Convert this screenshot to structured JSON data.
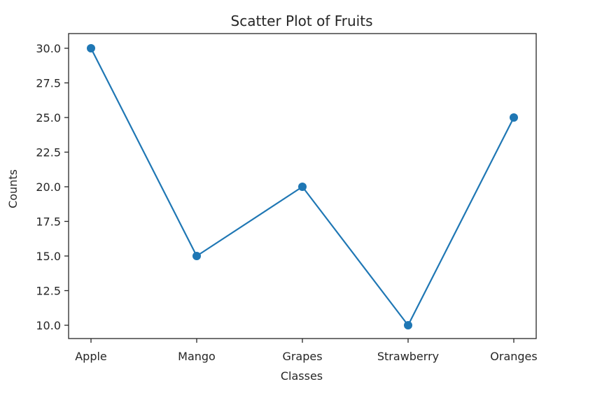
{
  "chart_data": {
    "type": "line",
    "title": "Scatter Plot of Fruits",
    "xlabel": "Classes",
    "ylabel": "Counts",
    "categories": [
      "Apple",
      "Mango",
      "Grapes",
      "Strawberry",
      "Oranges"
    ],
    "values": [
      30,
      15,
      20,
      10,
      25
    ],
    "series": [
      {
        "name": "Counts",
        "values": [
          30,
          15,
          20,
          10,
          25
        ],
        "color": "#1f77b4",
        "marker": "circle"
      }
    ],
    "ylim": [
      9.0,
      31.0
    ],
    "yticks": [
      10.0,
      12.5,
      15.0,
      17.5,
      20.0,
      22.5,
      25.0,
      27.5,
      30.0
    ],
    "ytick_labels": [
      "10.0",
      "12.5",
      "15.0",
      "17.5",
      "20.0",
      "22.5",
      "25.0",
      "27.5",
      "30.0"
    ],
    "grid": false,
    "legend": null
  },
  "colors": {
    "line": "#1f77b4",
    "axes": "#262626",
    "background": "#ffffff"
  }
}
